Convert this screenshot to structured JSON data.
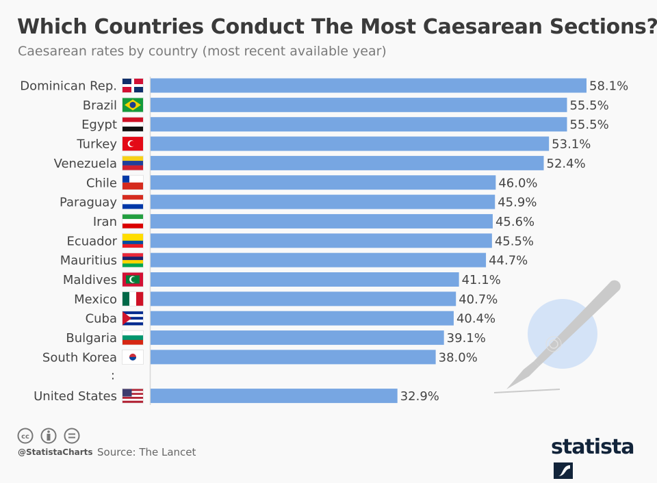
{
  "header": {
    "title": "Which Countries Conduct The Most Caesarean Sections?",
    "subtitle": "Caesarean rates by country (most recent available year)"
  },
  "chart_data": {
    "type": "bar",
    "orientation": "horizontal",
    "title": "Which Countries Conduct The Most Caesarean Sections?",
    "subtitle": "Caesarean rates by country (most recent available year)",
    "unit": "%",
    "categories": [
      "Dominican Rep.",
      "Brazil",
      "Egypt",
      "Turkey",
      "Venezuela",
      "Chile",
      "Paraguay",
      "Iran",
      "Ecuador",
      "Mauritius",
      "Maldives",
      "Mexico",
      "Cuba",
      "Bulgaria",
      "South Korea",
      "United States"
    ],
    "values": [
      58.1,
      55.5,
      55.5,
      53.1,
      52.4,
      46.0,
      45.9,
      45.6,
      45.5,
      44.7,
      41.1,
      40.7,
      40.4,
      39.1,
      38.0,
      32.9
    ],
    "value_labels": [
      "58.1%",
      "55.5%",
      "55.5%",
      "53.1%",
      "52.4%",
      "46.0%",
      "45.9%",
      "45.6%",
      "45.5%",
      "44.7%",
      "41.1%",
      "40.7%",
      "40.4%",
      "39.1%",
      "38.0%",
      "32.9%"
    ],
    "flags": [
      "flag-dominican-republic",
      "flag-brazil",
      "flag-egypt",
      "flag-turkey",
      "flag-venezuela",
      "flag-chile",
      "flag-paraguay",
      "flag-iran",
      "flag-ecuador",
      "flag-mauritius",
      "flag-maldives",
      "flag-mexico",
      "flag-cuba",
      "flag-bulgaria",
      "flag-south-korea",
      "flag-united-states"
    ],
    "gap_marker": ":",
    "gap_before_index": 15,
    "bar_color": "#77a6e2",
    "xlim": [
      0,
      58.1
    ],
    "grid": false,
    "legend": "none"
  },
  "decoration": {
    "icon": "scalpel-icon",
    "circle_color": "#d4e3f7",
    "scalpel_color": "#cacaca"
  },
  "footer": {
    "license_icons": [
      "cc-icon",
      "by-icon",
      "nd-icon"
    ],
    "handle": "@StatistaCharts",
    "source": "Source: The Lancet",
    "logo_text": "statista"
  }
}
